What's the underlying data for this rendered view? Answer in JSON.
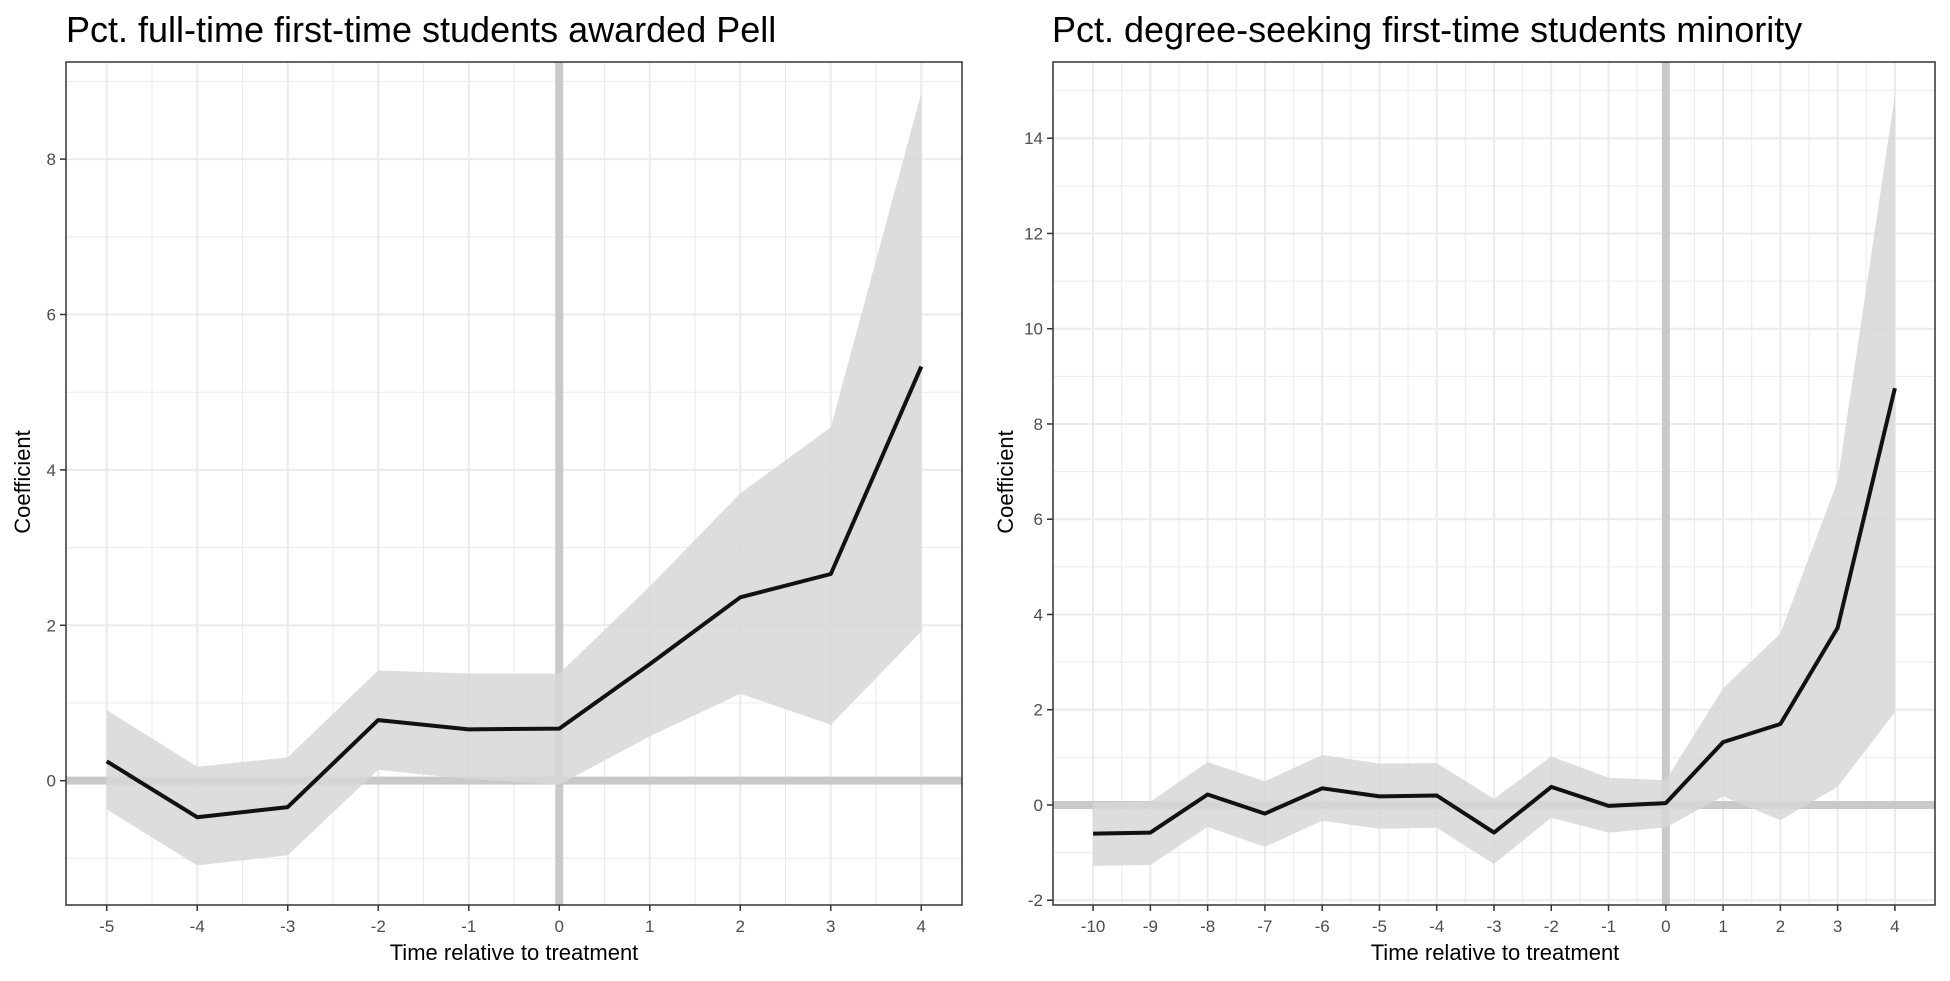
{
  "chart_data": [
    {
      "type": "line",
      "title": "Pct. full-time first-time students awarded Pell",
      "xlabel": "Time relative to treatment",
      "ylabel": "Coefficient",
      "xlim": [
        -5.45,
        4.45
      ],
      "ylim": [
        -1.6,
        9.25
      ],
      "xticks": [
        -5,
        -4,
        -3,
        -2,
        -1,
        0,
        1,
        2,
        3,
        4
      ],
      "yticks": [
        0,
        2,
        4,
        6,
        8
      ],
      "grid": true,
      "legend": "none",
      "reference_lines": {
        "x": 0,
        "y": 0
      },
      "series": [
        {
          "x": [
            -5,
            -4,
            -3,
            -2,
            -1,
            0,
            1,
            2,
            3,
            4
          ],
          "values": [
            0.25,
            -0.47,
            -0.34,
            0.78,
            0.66,
            0.67,
            1.5,
            2.36,
            2.66,
            5.33
          ],
          "ci_low": [
            -0.37,
            -1.09,
            -0.96,
            0.14,
            0.02,
            -0.05,
            0.57,
            1.12,
            0.72,
            1.92
          ],
          "ci_high": [
            0.91,
            0.18,
            0.3,
            1.42,
            1.38,
            1.38,
            2.5,
            3.7,
            4.55,
            8.85
          ]
        }
      ],
      "colors": {
        "line": "#111111",
        "band": "#d7d7d7",
        "reference": "#c9c9c9",
        "grid": "#ebebeb"
      }
    },
    {
      "type": "line",
      "title": "Pct. degree-seeking first-time students minority",
      "xlabel": "Time relative to treatment",
      "ylabel": "Coefficient",
      "xlim": [
        -10.7,
        4.7
      ],
      "ylim": [
        -2.1,
        15.6
      ],
      "xticks": [
        -10,
        -9,
        -8,
        -7,
        -6,
        -5,
        -4,
        -3,
        -2,
        -1,
        0,
        1,
        2,
        3,
        4
      ],
      "yticks": [
        -2,
        0,
        2,
        4,
        6,
        8,
        10,
        12,
        14
      ],
      "grid": true,
      "legend": "none",
      "reference_lines": {
        "x": 0,
        "y": 0
      },
      "series": [
        {
          "x": [
            -10,
            -9,
            -8,
            -7,
            -6,
            -5,
            -4,
            -3,
            -2,
            -1,
            0,
            1,
            2,
            3,
            4
          ],
          "values": [
            -0.6,
            -0.58,
            0.22,
            -0.18,
            0.35,
            0.18,
            0.2,
            -0.58,
            0.38,
            -0.02,
            0.04,
            1.32,
            1.7,
            3.72,
            8.75
          ],
          "ci_low": [
            -1.28,
            -1.26,
            -0.46,
            -0.88,
            -0.33,
            -0.5,
            -0.48,
            -1.24,
            -0.27,
            -0.58,
            -0.47,
            0.18,
            -0.32,
            0.38,
            1.95
          ],
          "ci_high": [
            0.05,
            0.07,
            0.9,
            0.5,
            1.05,
            0.87,
            0.88,
            0.13,
            1.02,
            0.57,
            0.52,
            2.45,
            3.6,
            6.8,
            14.9
          ]
        }
      ],
      "colors": {
        "line": "#111111",
        "band": "#d7d7d7",
        "reference": "#c9c9c9",
        "grid": "#ebebeb"
      }
    }
  ]
}
